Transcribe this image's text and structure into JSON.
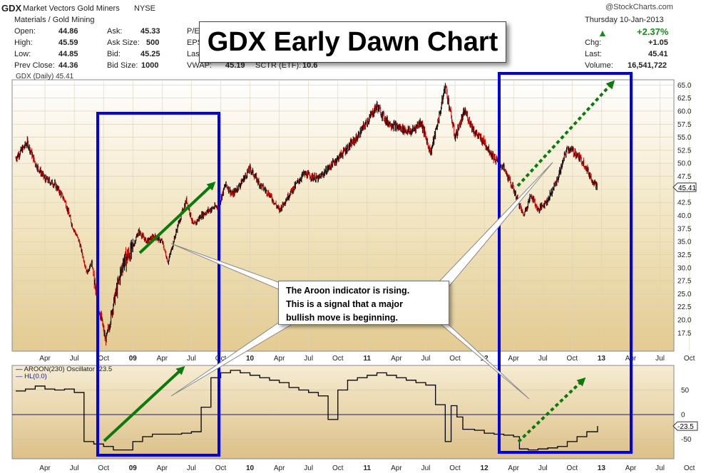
{
  "header": {
    "symbol": "GDX",
    "name": "Market Vectors Gold Miners",
    "exchange": "NYSE",
    "sector": "Materials / Gold Mining",
    "brand": "@StockCharts.com",
    "date": "Thursday  10-Jan-2013",
    "quote_left": [
      {
        "label": "Open:",
        "value": "44.86"
      },
      {
        "label": "High:",
        "value": "45.59"
      },
      {
        "label": "Low:",
        "value": "44.85"
      },
      {
        "label": "Prev Close:",
        "value": "44.36"
      }
    ],
    "quote_mid": [
      {
        "label": "Ask:",
        "value": "45.33"
      },
      {
        "label": "Ask Size:",
        "value": "500"
      },
      {
        "label": "Bid:",
        "value": "45.25"
      },
      {
        "label": "Bid Size:",
        "value": "1000"
      }
    ],
    "quote_mid2": [
      {
        "label": "P/E"
      },
      {
        "label": "EPS"
      },
      {
        "label": "Las"
      }
    ],
    "vwap_label": "VWAP:",
    "vwap_value": "45.19",
    "sctr_label": "SCTR (ETF):",
    "sctr_value": "10.6",
    "change_pct": "+2.37%",
    "quote_right": [
      {
        "label": "Chg:",
        "value": "+1.05"
      },
      {
        "label": "Last:",
        "value": "45.41"
      },
      {
        "label": "Volume:",
        "value": "16,541,722"
      }
    ]
  },
  "title": "GDX Early Dawn Chart",
  "callout_lines": [
    "The Aroon indicator is rising.",
    "This is a signal that a major",
    "bullish move is beginning."
  ],
  "colors": {
    "panel_bg": "#e9d6a8",
    "annotation_box": "#0000ee",
    "arrow": "#0a7a0a",
    "bar_up": "#000000",
    "bar_down": "#cc0000"
  },
  "chart_data": [
    {
      "type": "bar",
      "title": "GDX (Daily) 45.41",
      "series": [
        {
          "name": "GDX (Daily) 45.41",
          "kind": "ohlc"
        }
      ],
      "ylim": [
        14,
        66
      ],
      "ytick_labels": [
        "65.0",
        "62.5",
        "60.0",
        "57.5",
        "55.0",
        "52.5",
        "50.0",
        "47.5",
        "45.0",
        "42.5",
        "40.0",
        "37.5",
        "35.0",
        "32.5",
        "30.0",
        "27.5",
        "25.0",
        "22.5",
        "20.0",
        "17.5"
      ],
      "yticks": [
        65.0,
        62.5,
        60.0,
        57.5,
        55.0,
        52.5,
        50.0,
        47.5,
        45.0,
        42.5,
        40.0,
        37.5,
        35.0,
        32.5,
        30.0,
        27.5,
        25.0,
        22.5,
        20.0,
        17.5
      ],
      "last_value_label": "45.41",
      "last_value": 45.41,
      "x_tick_labels": [
        "Apr",
        "Jul",
        "Oct",
        "09",
        "Apr",
        "Jul",
        "Oct",
        "10",
        "Apr",
        "Jul",
        "Oct",
        "11",
        "Apr",
        "Jul",
        "Oct",
        "12",
        "Apr",
        "Jul",
        "Oct",
        "13",
        "Apr",
        "Jul",
        "Oct"
      ],
      "x_tick_months": [
        3,
        6,
        9,
        12,
        15,
        18,
        21,
        24,
        27,
        30,
        33,
        36,
        39,
        42,
        45,
        48,
        51,
        54,
        57,
        60,
        63,
        66,
        69
      ],
      "x_tick_bold": [
        false,
        false,
        false,
        true,
        false,
        false,
        false,
        true,
        false,
        false,
        false,
        true,
        false,
        false,
        false,
        true,
        false,
        false,
        false,
        true,
        false,
        false,
        false
      ],
      "price_anchors_month_value": [
        [
          0,
          51
        ],
        [
          1.2,
          54
        ],
        [
          2,
          50
        ],
        [
          3,
          47
        ],
        [
          4,
          46
        ],
        [
          5,
          43
        ],
        [
          5.8,
          38
        ],
        [
          6.5,
          35
        ],
        [
          7.3,
          29
        ],
        [
          7.8,
          31
        ],
        [
          8.3,
          24
        ],
        [
          8.8,
          20
        ],
        [
          9.2,
          16
        ],
        [
          9.6,
          19
        ],
        [
          10,
          23
        ],
        [
          10.5,
          27
        ],
        [
          11,
          31
        ],
        [
          11.8,
          33
        ],
        [
          12.6,
          37
        ],
        [
          13.4,
          35
        ],
        [
          14.2,
          36
        ],
        [
          15,
          35
        ],
        [
          15.6,
          31
        ],
        [
          16.6,
          38
        ],
        [
          17.5,
          43
        ],
        [
          18.2,
          38
        ],
        [
          19,
          40
        ],
        [
          19.8,
          41
        ],
        [
          20.8,
          42
        ],
        [
          21.5,
          46
        ],
        [
          22.2,
          44
        ],
        [
          23,
          46
        ],
        [
          24,
          49
        ],
        [
          25,
          46
        ],
        [
          26,
          44
        ],
        [
          27,
          41
        ],
        [
          28,
          44
        ],
        [
          29.5,
          48
        ],
        [
          31,
          47
        ],
        [
          32.5,
          50
        ],
        [
          34,
          53
        ],
        [
          35,
          55
        ],
        [
          36,
          58
        ],
        [
          37,
          61
        ],
        [
          38,
          58
        ],
        [
          39,
          57
        ],
        [
          40.5,
          56
        ],
        [
          41.5,
          58
        ],
        [
          42.5,
          52
        ],
        [
          43.5,
          60
        ],
        [
          44,
          65
        ],
        [
          45,
          55
        ],
        [
          46,
          60
        ],
        [
          47,
          56
        ],
        [
          48,
          54
        ],
        [
          49,
          51
        ],
        [
          50,
          49
        ],
        [
          51,
          45
        ],
        [
          52,
          40
        ],
        [
          52.8,
          44
        ],
        [
          53.5,
          41
        ],
        [
          54.5,
          43
        ],
        [
          55.5,
          47
        ],
        [
          56.5,
          53
        ],
        [
          57.3,
          52
        ],
        [
          58.2,
          50
        ],
        [
          59,
          47
        ],
        [
          59.6,
          45.41
        ]
      ]
    },
    {
      "type": "line",
      "series": [
        {
          "name": "AROON(230) Oscillator -23.5",
          "last": -23.5
        },
        {
          "name": "HL(0.0)",
          "value": 0
        }
      ],
      "ylim": [
        -90,
        100
      ],
      "ytick_labels": [
        "50",
        "0",
        "-50"
      ],
      "yticks": [
        50,
        0,
        -50
      ],
      "last_value_label": "-23.5",
      "last_value": -23.5,
      "aroon_steps_month_value": [
        [
          0,
          48
        ],
        [
          1,
          52
        ],
        [
          2,
          58
        ],
        [
          3,
          52
        ],
        [
          4,
          50
        ],
        [
          5,
          52
        ],
        [
          6,
          45
        ],
        [
          7,
          -55
        ],
        [
          8,
          -60
        ],
        [
          9,
          -65
        ],
        [
          10,
          -72
        ],
        [
          11,
          -72
        ],
        [
          12,
          -55
        ],
        [
          13,
          -45
        ],
        [
          14,
          -40
        ],
        [
          15,
          -40
        ],
        [
          16,
          -40
        ],
        [
          17,
          -38
        ],
        [
          18,
          -35
        ],
        [
          19,
          15
        ],
        [
          20,
          75
        ],
        [
          21,
          85
        ],
        [
          22,
          90
        ],
        [
          23,
          85
        ],
        [
          24,
          80
        ],
        [
          25,
          75
        ],
        [
          26,
          70
        ],
        [
          27,
          65
        ],
        [
          28,
          55
        ],
        [
          29,
          50
        ],
        [
          30,
          45
        ],
        [
          31,
          38
        ],
        [
          32,
          -10
        ],
        [
          33,
          50
        ],
        [
          34,
          70
        ],
        [
          35,
          75
        ],
        [
          36,
          80
        ],
        [
          37,
          85
        ],
        [
          38,
          80
        ],
        [
          39,
          75
        ],
        [
          40,
          70
        ],
        [
          41,
          65
        ],
        [
          42,
          60
        ],
        [
          43,
          20
        ],
        [
          44,
          -55
        ],
        [
          44.6,
          18
        ],
        [
          45.2,
          -5
        ],
        [
          45.8,
          -30
        ],
        [
          47,
          -32
        ],
        [
          48,
          -38
        ],
        [
          49,
          -40
        ],
        [
          50,
          -42
        ],
        [
          51,
          -45
        ],
        [
          51.6,
          -70
        ],
        [
          52.5,
          -72
        ],
        [
          53.5,
          -70
        ],
        [
          54.5,
          -68
        ],
        [
          55.5,
          -65
        ],
        [
          56.5,
          -55
        ],
        [
          57.5,
          -45
        ],
        [
          58.5,
          -35
        ],
        [
          59.6,
          -23.5
        ]
      ]
    }
  ]
}
